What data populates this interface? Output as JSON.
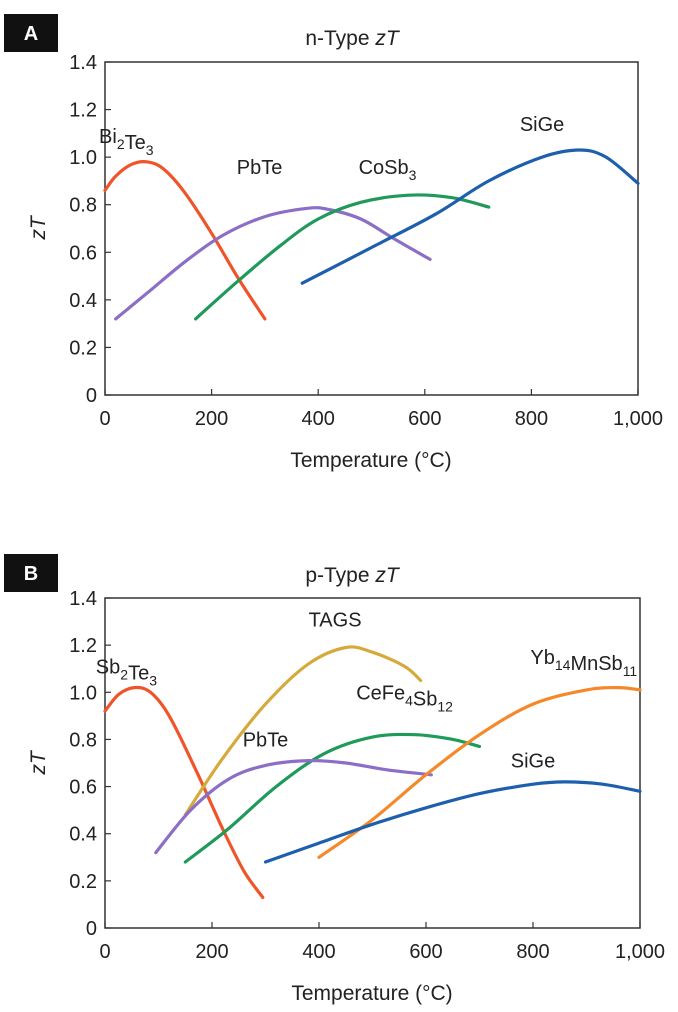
{
  "chart_data": [
    {
      "panel": "A",
      "type": "line",
      "title": "n-Type zT",
      "title_plain": "n-Type ",
      "title_italic": "zT",
      "xlabel": "Temperature (°C)",
      "ylabel": "zT",
      "xlim": [
        0,
        1000
      ],
      "ylim": [
        0,
        1.4
      ],
      "xticks": [
        0,
        200,
        400,
        600,
        800,
        1000
      ],
      "xtick_labels": [
        "0",
        "200",
        "400",
        "600",
        "800",
        "1,000"
      ],
      "yticks": [
        0,
        0.2,
        0.4,
        0.6,
        0.8,
        1.0,
        1.2,
        1.4
      ],
      "ytick_labels": [
        "0",
        "0.2",
        "0.4",
        "0.6",
        "0.8",
        "1.0",
        "1.2",
        "1.4"
      ],
      "series": [
        {
          "name": "Bi2Te3",
          "label_main": "Bi",
          "label_parts": [
            [
              "Bi",
              ""
            ],
            [
              "2",
              "sub"
            ],
            [
              "Te",
              ""
            ],
            [
              "3",
              "sub"
            ]
          ],
          "color": "#f0542a",
          "points": [
            [
              0,
              0.86
            ],
            [
              20,
              0.92
            ],
            [
              50,
              0.97
            ],
            [
              80,
              0.98
            ],
            [
              110,
              0.95
            ],
            [
              150,
              0.85
            ],
            [
              200,
              0.68
            ],
            [
              250,
              0.49
            ],
            [
              300,
              0.32
            ]
          ],
          "label_at": [
            40,
            1.06
          ]
        },
        {
          "name": "PbTe",
          "label_parts": [
            [
              "PbTe",
              ""
            ]
          ],
          "color": "#8b6fc7",
          "points": [
            [
              20,
              0.32
            ],
            [
              80,
              0.43
            ],
            [
              150,
              0.56
            ],
            [
              220,
              0.67
            ],
            [
              300,
              0.75
            ],
            [
              380,
              0.785
            ],
            [
              420,
              0.78
            ],
            [
              480,
              0.74
            ],
            [
              540,
              0.66
            ],
            [
              610,
              0.57
            ]
          ],
          "label_at": [
            290,
            0.93
          ]
        },
        {
          "name": "CoSb3",
          "label_parts": [
            [
              "CoSb",
              ""
            ],
            [
              "3",
              "sub"
            ]
          ],
          "color": "#1f9a5a",
          "points": [
            [
              170,
              0.32
            ],
            [
              250,
              0.48
            ],
            [
              330,
              0.63
            ],
            [
              400,
              0.74
            ],
            [
              480,
              0.81
            ],
            [
              570,
              0.84
            ],
            [
              650,
              0.83
            ],
            [
              720,
              0.79
            ]
          ],
          "label_at": [
            530,
            0.93
          ]
        },
        {
          "name": "SiGe",
          "label_parts": [
            [
              "SiGe",
              ""
            ]
          ],
          "color": "#1e5fad",
          "points": [
            [
              370,
              0.47
            ],
            [
              500,
              0.62
            ],
            [
              620,
              0.76
            ],
            [
              720,
              0.9
            ],
            [
              820,
              1.0
            ],
            [
              890,
              1.03
            ],
            [
              940,
              1.0
            ],
            [
              1000,
              0.89
            ]
          ],
          "label_at": [
            820,
            1.11
          ]
        }
      ]
    },
    {
      "panel": "B",
      "type": "line",
      "title": "p-Type zT",
      "title_plain": "p-Type ",
      "title_italic": "zT",
      "xlabel": "Temperature (°C)",
      "ylabel": "zT",
      "xlim": [
        0,
        1000
      ],
      "ylim": [
        0,
        1.4
      ],
      "xticks": [
        0,
        200,
        400,
        600,
        800,
        1000
      ],
      "xtick_labels": [
        "0",
        "200",
        "400",
        "600",
        "800",
        "1,000"
      ],
      "yticks": [
        0,
        0.2,
        0.4,
        0.6,
        0.8,
        1.0,
        1.2,
        1.4
      ],
      "ytick_labels": [
        "0",
        "0.2",
        "0.4",
        "0.6",
        "0.8",
        "1.0",
        "1.2",
        "1.4"
      ],
      "series": [
        {
          "name": "Sb2Te3",
          "label_parts": [
            [
              "Sb",
              ""
            ],
            [
              "2",
              "sub"
            ],
            [
              "Te",
              ""
            ],
            [
              "3",
              "sub"
            ]
          ],
          "color": "#f0542a",
          "points": [
            [
              0,
              0.92
            ],
            [
              25,
              0.99
            ],
            [
              55,
              1.02
            ],
            [
              85,
              1.0
            ],
            [
              120,
              0.9
            ],
            [
              170,
              0.67
            ],
            [
              220,
              0.42
            ],
            [
              260,
              0.24
            ],
            [
              295,
              0.13
            ]
          ],
          "label_at": [
            40,
            1.08
          ]
        },
        {
          "name": "TAGS",
          "label_parts": [
            [
              "TAGS",
              ""
            ]
          ],
          "color": "#d6a93b",
          "points": [
            [
              150,
              0.48
            ],
            [
              220,
              0.72
            ],
            [
              300,
              0.95
            ],
            [
              380,
              1.12
            ],
            [
              450,
              1.19
            ],
            [
              500,
              1.17
            ],
            [
              560,
              1.11
            ],
            [
              590,
              1.05
            ]
          ],
          "label_at": [
            430,
            1.28
          ]
        },
        {
          "name": "CeFe4Sb12",
          "label_parts": [
            [
              "CeFe",
              ""
            ],
            [
              "4",
              "sub"
            ],
            [
              "Sb",
              ""
            ],
            [
              "12",
              "sub"
            ]
          ],
          "color": "#1f9a5a",
          "points": [
            [
              150,
              0.28
            ],
            [
              230,
              0.42
            ],
            [
              320,
              0.6
            ],
            [
              410,
              0.74
            ],
            [
              500,
              0.81
            ],
            [
              580,
              0.82
            ],
            [
              650,
              0.8
            ],
            [
              700,
              0.77
            ]
          ],
          "label_at": [
            560,
            0.97
          ]
        },
        {
          "name": "PbTe",
          "label_parts": [
            [
              "PbTe",
              ""
            ]
          ],
          "color": "#8b6fc7",
          "points": [
            [
              95,
              0.32
            ],
            [
              160,
              0.5
            ],
            [
              230,
              0.63
            ],
            [
              300,
              0.69
            ],
            [
              380,
              0.71
            ],
            [
              450,
              0.7
            ],
            [
              530,
              0.67
            ],
            [
              610,
              0.65
            ]
          ],
          "label_at": [
            300,
            0.77
          ]
        },
        {
          "name": "Yb14MnSb11",
          "label_parts": [
            [
              "Yb",
              ""
            ],
            [
              "14",
              "sub"
            ],
            [
              "MnSb",
              ""
            ],
            [
              "11",
              "sub"
            ]
          ],
          "color": "#f5892a",
          "points": [
            [
              400,
              0.3
            ],
            [
              500,
              0.46
            ],
            [
              600,
              0.65
            ],
            [
              700,
              0.82
            ],
            [
              800,
              0.95
            ],
            [
              900,
              1.01
            ],
            [
              960,
              1.02
            ],
            [
              1000,
              1.01
            ]
          ],
          "label_at": [
            895,
            1.12
          ]
        },
        {
          "name": "SiGe",
          "label_parts": [
            [
              "SiGe",
              ""
            ]
          ],
          "color": "#1e5fad",
          "points": [
            [
              300,
              0.28
            ],
            [
              400,
              0.36
            ],
            [
              500,
              0.44
            ],
            [
              600,
              0.51
            ],
            [
              700,
              0.57
            ],
            [
              800,
              0.61
            ],
            [
              860,
              0.62
            ],
            [
              930,
              0.61
            ],
            [
              1000,
              0.58
            ]
          ],
          "label_at": [
            800,
            0.68
          ]
        }
      ]
    }
  ]
}
